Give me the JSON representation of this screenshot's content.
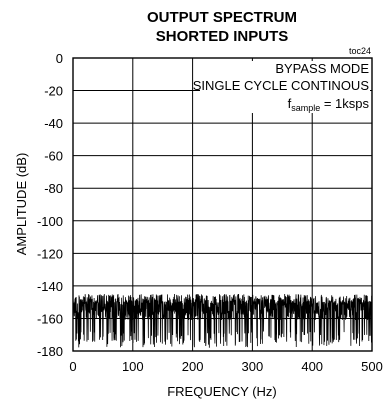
{
  "chart_data": {
    "type": "line",
    "title": "OUTPUT SPECTRUM",
    "subtitle": "SHORTED INPUTS",
    "figure_id": "toc24",
    "xlabel": "FREQUENCY (Hz)",
    "ylabel": "AMPLITUDE (dB)",
    "xlim": [
      0,
      500
    ],
    "ylim": [
      -180,
      0
    ],
    "x_ticks": [
      "0",
      "100",
      "200",
      "300",
      "400",
      "500"
    ],
    "y_ticks": [
      "0",
      "-20",
      "-40",
      "-60",
      "-80",
      "-100",
      "-120",
      "-140",
      "-160",
      "-180"
    ],
    "grid": true,
    "annotations": {
      "line1": "BYPASS MODE",
      "line2": "SINGLE CYCLE CONTINOUS",
      "fs_prefix": "f",
      "fs_sub": "sample",
      "fs_suffix": " = 1ksps"
    },
    "series": [
      {
        "noise_floor_mean_db": -155,
        "noise_peak_db": -145,
        "noise_min_db": -178,
        "x_range": [
          0,
          500
        ]
      }
    ],
    "colors": {
      "trace": "#000000",
      "grid": "#000000"
    }
  }
}
